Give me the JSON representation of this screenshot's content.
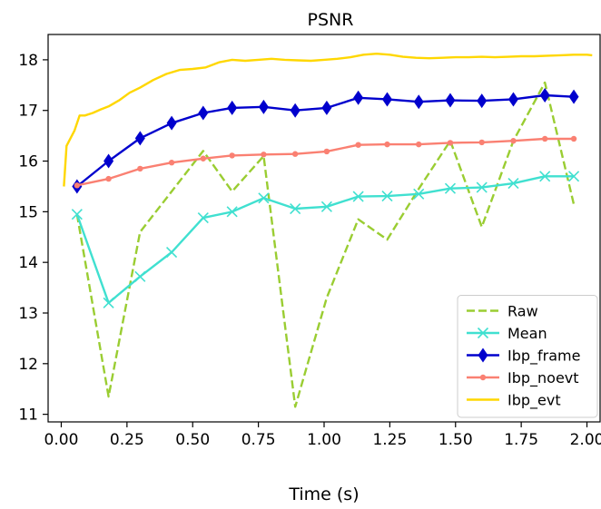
{
  "chart_data": {
    "type": "line",
    "title": "PSNR",
    "xlabel": "Time (s)",
    "ylabel": "",
    "xlim": [
      -0.05,
      2.05
    ],
    "ylim": [
      10.85,
      18.5
    ],
    "xticks": [
      "0.00",
      "0.25",
      "0.50",
      "0.75",
      "1.00",
      "1.25",
      "1.50",
      "1.75",
      "2.00"
    ],
    "xtick_values": [
      0,
      0.25,
      0.5,
      0.75,
      1.0,
      1.25,
      1.5,
      1.75,
      2.0
    ],
    "yticks": [
      "11",
      "12",
      "13",
      "14",
      "15",
      "16",
      "17",
      "18"
    ],
    "ytick_values": [
      11,
      12,
      13,
      14,
      15,
      16,
      17,
      18
    ],
    "grid": false,
    "legend_position": "lower-right",
    "series": [
      {
        "name": "Raw",
        "color": "#9acd32",
        "style": "dashed",
        "marker": "none",
        "x": [
          0.06,
          0.18,
          0.3,
          0.42,
          0.54,
          0.65,
          0.77,
          0.89,
          1.01,
          1.13,
          1.24,
          1.36,
          1.48,
          1.6,
          1.72,
          1.84,
          1.95
        ],
        "y": [
          14.95,
          11.35,
          14.6,
          15.4,
          16.2,
          15.4,
          16.1,
          11.15,
          13.3,
          14.85,
          14.45,
          15.45,
          16.4,
          14.7,
          16.4,
          17.55,
          15.15
        ]
      },
      {
        "name": "Mean",
        "color": "#40e0d0",
        "style": "solid",
        "marker": "x",
        "x": [
          0.06,
          0.18,
          0.3,
          0.42,
          0.54,
          0.65,
          0.77,
          0.89,
          1.01,
          1.13,
          1.24,
          1.36,
          1.48,
          1.6,
          1.72,
          1.84,
          1.95
        ],
        "y": [
          14.95,
          13.2,
          13.72,
          14.2,
          14.88,
          15.0,
          15.27,
          15.06,
          15.1,
          15.3,
          15.31,
          15.35,
          15.46,
          15.48,
          15.56,
          15.7,
          15.7
        ]
      },
      {
        "name": "Ibp_frame",
        "color": "#0000cd",
        "style": "solid",
        "marker": "diamond",
        "x": [
          0.06,
          0.18,
          0.3,
          0.42,
          0.54,
          0.65,
          0.77,
          0.89,
          1.01,
          1.13,
          1.24,
          1.36,
          1.48,
          1.6,
          1.72,
          1.84,
          1.95
        ],
        "y": [
          15.5,
          16.0,
          16.45,
          16.75,
          16.95,
          17.05,
          17.07,
          17.0,
          17.05,
          17.25,
          17.22,
          17.17,
          17.2,
          17.19,
          17.22,
          17.3,
          17.27
        ]
      },
      {
        "name": "Ibp_noevt",
        "color": "#fa8072",
        "style": "solid",
        "marker": "dot",
        "x": [
          0.06,
          0.18,
          0.3,
          0.42,
          0.54,
          0.65,
          0.77,
          0.89,
          1.01,
          1.13,
          1.24,
          1.36,
          1.48,
          1.6,
          1.72,
          1.84,
          1.95
        ],
        "y": [
          15.52,
          15.65,
          15.85,
          15.97,
          16.05,
          16.11,
          16.13,
          16.14,
          16.19,
          16.32,
          16.33,
          16.33,
          16.36,
          16.37,
          16.4,
          16.44,
          16.44
        ]
      },
      {
        "name": "Ibp_evt",
        "color": "#ffd700",
        "style": "solid",
        "marker": "none",
        "x": [
          0.01,
          0.02,
          0.03,
          0.05,
          0.07,
          0.09,
          0.12,
          0.15,
          0.18,
          0.22,
          0.26,
          0.3,
          0.35,
          0.4,
          0.45,
          0.5,
          0.55,
          0.6,
          0.65,
          0.7,
          0.75,
          0.8,
          0.85,
          0.9,
          0.95,
          1.0,
          1.05,
          1.1,
          1.15,
          1.2,
          1.25,
          1.3,
          1.35,
          1.4,
          1.45,
          1.5,
          1.55,
          1.6,
          1.65,
          1.7,
          1.75,
          1.8,
          1.85,
          1.9,
          1.95,
          2.0,
          2.02
        ],
        "y": [
          15.5,
          16.3,
          16.4,
          16.6,
          16.9,
          16.9,
          16.95,
          17.02,
          17.08,
          17.2,
          17.35,
          17.45,
          17.6,
          17.72,
          17.8,
          17.82,
          17.85,
          17.95,
          18.0,
          17.98,
          18.0,
          18.02,
          18.0,
          17.99,
          17.98,
          18.0,
          18.02,
          18.05,
          18.1,
          18.12,
          18.1,
          18.06,
          18.04,
          18.03,
          18.04,
          18.05,
          18.05,
          18.06,
          18.05,
          18.06,
          18.07,
          18.07,
          18.08,
          18.09,
          18.1,
          18.1,
          18.09
        ]
      }
    ]
  }
}
